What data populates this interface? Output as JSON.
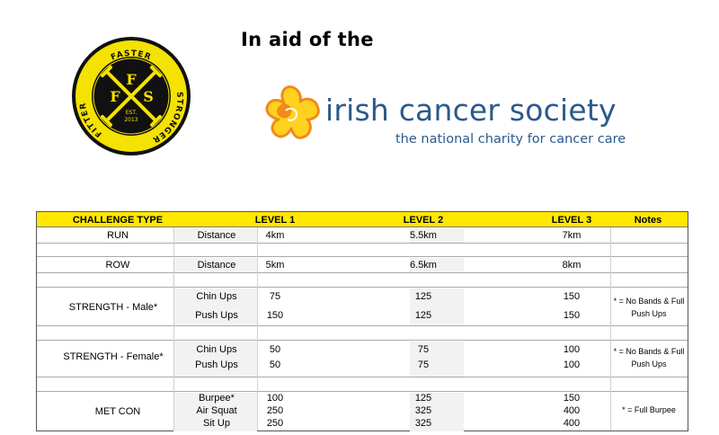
{
  "logo": {
    "top_text": "FASTER",
    "left_text": "FITTER",
    "right_text": "STRONGER",
    "letters": [
      "F",
      "F",
      "S"
    ],
    "est": "EST.",
    "year": "2013"
  },
  "headline": "In aid of the",
  "ics": {
    "name": "irish cancer society",
    "tagline": "the national charity for cancer care"
  },
  "table": {
    "headers": {
      "challenge": "CHALLENGE TYPE",
      "level1": "LEVEL 1",
      "level2": "LEVEL 2",
      "level3": "LEVEL 3",
      "notes": "Notes"
    },
    "run": {
      "type": "RUN",
      "metric": "Distance",
      "l1": "4km",
      "l2": "5.5km",
      "l3": "7km"
    },
    "row": {
      "type": "ROW",
      "metric": "Distance",
      "l1": "5km",
      "l2": "6.5km",
      "l3": "8km"
    },
    "strength_male": {
      "type": "STRENGTH - Male*",
      "note_line1": "* = No Bands & Full",
      "note_line2": "Push Ups",
      "rows": [
        {
          "exercise": "Chin Ups",
          "l1": "75",
          "l2": "125",
          "l3": "150"
        },
        {
          "exercise": "Push Ups",
          "l1": "150",
          "l2": "125",
          "l3": "150"
        }
      ]
    },
    "strength_female": {
      "type": "STRENGTH - Female*",
      "note_line1": "* = No Bands & Full",
      "note_line2": "Push Ups",
      "rows": [
        {
          "exercise": "Chin Ups",
          "l1": "50",
          "l2": "75",
          "l3": "100"
        },
        {
          "exercise": "Push Ups",
          "l1": "50",
          "l2": "75",
          "l3": "100"
        }
      ]
    },
    "metcon": {
      "type": "MET CON",
      "note": "* = Full Burpee",
      "rows": [
        {
          "exercise": "Burpee*",
          "l1": "100",
          "l2": "125",
          "l3": "150"
        },
        {
          "exercise": "Air Squat",
          "l1": "250",
          "l2": "325",
          "l3": "400"
        },
        {
          "exercise": "Sit Up",
          "l1": "250",
          "l2": "325",
          "l3": "400"
        }
      ]
    }
  },
  "colors": {
    "logo_yellow": "#f4e200",
    "logo_black": "#111111",
    "header_yellow": "#ffe800",
    "ics_blue": "#2b5a8b",
    "ics_orange": "#f08a1c"
  }
}
